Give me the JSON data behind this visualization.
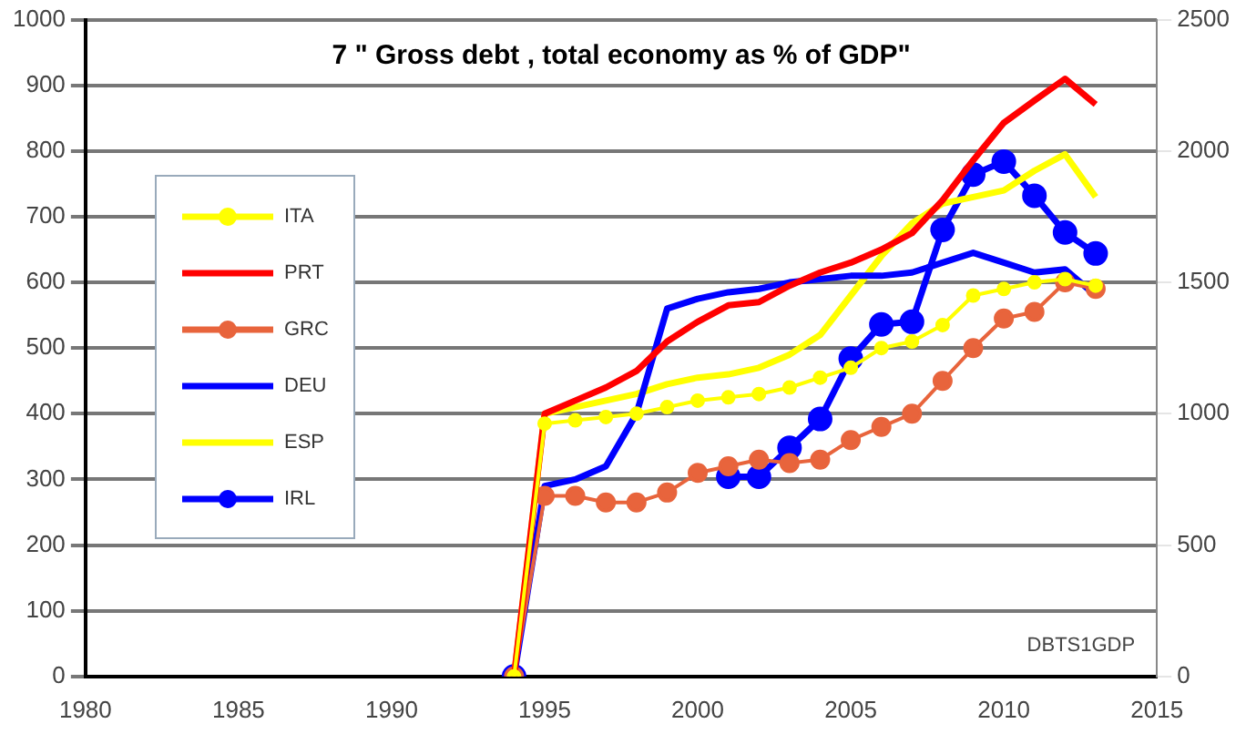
{
  "chart_data": {
    "type": "line",
    "title": "7 \" Gross debt , total economy as % of GDP\"",
    "x": [
      1994,
      1995,
      1996,
      1997,
      1998,
      1999,
      2000,
      2001,
      2002,
      2003,
      2004,
      2005,
      2006,
      2007,
      2008,
      2009,
      2010,
      2011,
      2012,
      2013
    ],
    "xlim": [
      1980,
      2015
    ],
    "xticks": [
      1980,
      1985,
      1990,
      1995,
      2000,
      2005,
      2010,
      2015
    ],
    "ylim": [
      0,
      1000
    ],
    "yticks": [
      0,
      100,
      200,
      300,
      400,
      500,
      600,
      700,
      800,
      900,
      1000
    ],
    "y2lim": [
      0,
      2500
    ],
    "y2ticks": [
      0,
      500,
      1000,
      1500,
      2000,
      2500
    ],
    "grid": "y",
    "legend": "left",
    "line_style": "solid",
    "annotations": [
      "DBTS1GDP"
    ],
    "series": [
      {
        "name": "ITA",
        "color": "#ffff00",
        "marker": "circle",
        "values": [
          0,
          385,
          390,
          395,
          400,
          410,
          420,
          425,
          430,
          440,
          455,
          470,
          500,
          510,
          535,
          580,
          590,
          600,
          605,
          595
        ]
      },
      {
        "name": "PRT",
        "color": "#ff0000",
        "marker": "none",
        "values": [
          0,
          400,
          420,
          440,
          465,
          510,
          540,
          565,
          570,
          595,
          615,
          630,
          650,
          675,
          725,
          786,
          843,
          877,
          910,
          871
        ]
      },
      {
        "name": "GRC",
        "color": "#e8643c",
        "marker": "circle",
        "values": [
          0,
          275,
          275,
          265,
          265,
          280,
          310,
          320,
          330,
          325,
          330,
          360,
          380,
          400,
          450,
          500,
          545,
          555,
          600,
          590
        ]
      },
      {
        "name": "DEU",
        "color": "#0000ff",
        "marker": "none",
        "values": [
          0,
          290,
          300,
          320,
          400,
          560,
          575,
          585,
          590,
          600,
          605,
          610,
          610,
          615,
          630,
          645,
          630,
          615,
          620,
          580
        ]
      },
      {
        "name": "ESP",
        "color": "#ffff00",
        "marker": "none",
        "values": [
          0,
          400,
          410,
          420,
          430,
          445,
          455,
          460,
          470,
          490,
          520,
          580,
          640,
          690,
          720,
          730,
          740,
          770,
          795,
          730
        ]
      },
      {
        "name": "IRL",
        "color": "#0000ff",
        "marker": "circle",
        "axis": "y2",
        "values": [
          0,
          null,
          null,
          null,
          null,
          null,
          null,
          760,
          760,
          870,
          980,
          1210,
          1340,
          1350,
          1700,
          1910,
          1960,
          1830,
          1690,
          1610
        ]
      }
    ]
  }
}
